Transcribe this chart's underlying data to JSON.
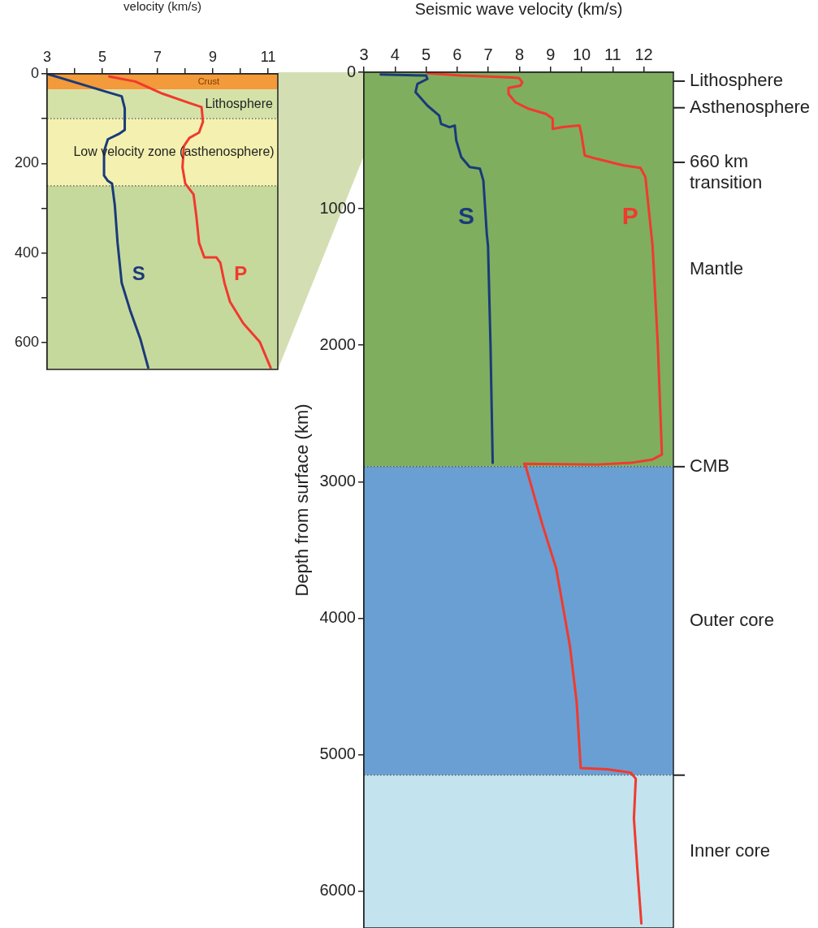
{
  "chart_data": [
    {
      "type": "line",
      "xlabel": "velocity (km/s)",
      "marker": "none",
      "legend": false,
      "grid": false,
      "xlim": [
        3,
        11.35
      ],
      "xticks": [
        3,
        {
          "value": 4,
          "label": null
        },
        5,
        {
          "value": 6,
          "label": null
        },
        7,
        {
          "value": 8,
          "label": null
        },
        9,
        {
          "value": 10,
          "label": null
        },
        11
      ],
      "ylim": [
        660,
        0
      ],
      "yticks": [
        0,
        {
          "value": 100,
          "label": null
        },
        200,
        {
          "value": 300,
          "label": null
        },
        400,
        {
          "value": 500,
          "label": null
        },
        600
      ],
      "bands": [
        {
          "axis": "y",
          "from": 0,
          "to": 35,
          "label": "Crust",
          "color": "#f39a3a"
        },
        {
          "axis": "y",
          "from": 35,
          "to": 100,
          "label": "Lithosphere",
          "color": "#d4e2a8"
        },
        {
          "axis": "y",
          "from": 100,
          "to": 250,
          "label": "Low velocity zone (asthenosphere)",
          "color": "#f4f1b0"
        },
        {
          "axis": "y",
          "from": 250,
          "to": 660,
          "label": null,
          "color": "#c6d99c"
        }
      ],
      "ref_lines": [
        {
          "axis": "y",
          "value": 100,
          "label": null,
          "line_style": "dotted"
        },
        {
          "axis": "y",
          "value": 250,
          "label": null,
          "line_style": "dotted"
        }
      ],
      "series": [
        {
          "name": "S",
          "color": "#1a3a7a",
          "x": [
            3,
            4.23,
            5.2,
            5.7,
            5.81,
            5.81,
            5.6,
            5.2,
            5.06,
            5.06,
            5.2,
            5.35,
            5.45,
            5.55,
            5.7,
            6.0,
            6.38,
            6.66
          ],
          "values": [
            0,
            23,
            41,
            50,
            77,
            125,
            134,
            146,
            173,
            227,
            239,
            245,
            293,
            377,
            467,
            527,
            593,
            656
          ]
        },
        {
          "name": "P",
          "color": "#f03a2e",
          "x": [
            5.25,
            6.19,
            7.17,
            8.15,
            8.59,
            8.64,
            8.5,
            8.15,
            7.95,
            7.9,
            8.0,
            8.3,
            8.4,
            8.5,
            8.69,
            9.13,
            9.27,
            9.42,
            9.62,
            10.1,
            10.7,
            11.09
          ],
          "values": [
            6,
            17,
            44,
            65,
            74,
            107,
            131,
            143,
            161,
            209,
            245,
            269,
            317,
            377,
            410,
            410,
            422,
            467,
            509,
            557,
            599,
            656
          ]
        }
      ]
    },
    {
      "type": "line",
      "xlabel": "Seismic wave velocity (km/s)",
      "ylabel": "Depth from surface (km)",
      "marker": "none",
      "legend": false,
      "grid": false,
      "xlim": [
        3,
        12.95
      ],
      "xticks": [
        3,
        4,
        5,
        6,
        7,
        8,
        9,
        10,
        11,
        12
      ],
      "ylim": [
        6270,
        0
      ],
      "yticks": [
        0,
        1000,
        2000,
        3000,
        4000,
        5000,
        6000
      ],
      "bands": [
        {
          "axis": "y",
          "from": 0,
          "to": 2890,
          "label": "Mantle",
          "color": "#7fae5f"
        },
        {
          "axis": "y",
          "from": 2890,
          "to": 5150,
          "label": "Outer core",
          "color": "#6a9fd3"
        },
        {
          "axis": "y",
          "from": 5150,
          "to": 6270,
          "label": "Inner core",
          "color": "#c3e3ee"
        }
      ],
      "ref_lines": [
        {
          "axis": "y",
          "value": 65,
          "label": "Lithosphere"
        },
        {
          "axis": "y",
          "value": 260,
          "label": "Asthenosphere"
        },
        {
          "axis": "y",
          "value": 660,
          "label": "660 km transition"
        },
        {
          "axis": "y",
          "value": 2890,
          "label": "CMB",
          "line_style": "dotted"
        },
        {
          "axis": "y",
          "value": 5150,
          "label": null,
          "line_style": "dotted"
        }
      ],
      "series": [
        {
          "name": "S",
          "color": "#1a3a7a",
          "x": [
            3.54,
            5.0,
            5.04,
            4.72,
            4.66,
            5.04,
            5.42,
            5.48,
            5.75,
            5.92,
            5.97,
            6.13,
            6.4,
            6.73,
            6.84,
            6.95,
            6.99,
            7.07,
            7.14
          ],
          "values": [
            17,
            24,
            49,
            85,
            146,
            244,
            317,
            378,
            402,
            390,
            500,
            622,
            695,
            707,
            793,
            1183,
            1272,
            2000,
            2862
          ]
        },
        {
          "name": "P",
          "color": "#f03a2e",
          "x": [
            5.04,
            6.13,
            7.65,
            7.98,
            8.09,
            8.03,
            7.65,
            7.65,
            7.87,
            8.3,
            8.85,
            9.07,
            9.07,
            9.39,
            9.93,
            9.99,
            10.1,
            10.48,
            11.35,
            11.89,
            12.05,
            12.28,
            12.45,
            12.58,
            12.28,
            11.58,
            10.49,
            8.15,
            8.2,
            8.75,
            9.18,
            9.62,
            9.84,
            9.97,
            10.82,
            11.58,
            11.74,
            11.68,
            11.79,
            11.92
          ],
          "values": [
            7,
            24,
            37,
            41,
            73,
            98,
            115,
            159,
            220,
            268,
            305,
            341,
            415,
            402,
            390,
            451,
            610,
            634,
            683,
            700,
            768,
            1272,
            2000,
            2801,
            2837,
            2862,
            2874,
            2869,
            2886,
            3323,
            3634,
            4200,
            4615,
            5098,
            5107,
            5132,
            5176,
            5468,
            5834,
            6237
          ]
        }
      ]
    }
  ]
}
